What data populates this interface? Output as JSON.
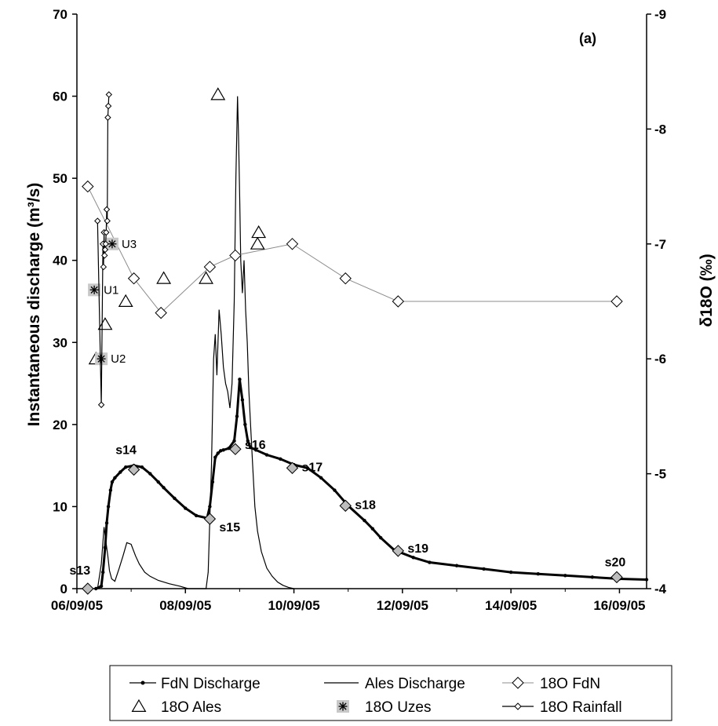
{
  "chart_data": {
    "type": "line",
    "panel_label": "(a)",
    "ylabel": "Instantaneous discharge (m³/s)",
    "y2label": "δ18O (‰)",
    "x_axis": {
      "ticks": [
        "06/09/05",
        "08/09/05",
        "10/09/05",
        "12/09/05",
        "14/09/05",
        "16/09/05"
      ],
      "range_days": [
        0,
        10.5
      ]
    },
    "y_axis": {
      "range": [
        0,
        70
      ],
      "ticks": [
        "0",
        "10",
        "20",
        "30",
        "40",
        "50",
        "60",
        "70"
      ]
    },
    "y2_axis": {
      "range": [
        -4,
        -9
      ],
      "ticks": [
        "-4",
        "-5",
        "-6",
        "-7",
        "-8",
        "-9"
      ]
    },
    "series": [
      {
        "name": "FdN Discharge",
        "axis": "left",
        "style": "line-dots",
        "x": [
          0.35,
          0.45,
          0.48,
          0.52,
          0.55,
          0.58,
          0.62,
          0.65,
          0.7,
          0.8,
          0.9,
          1.05,
          1.2,
          1.35,
          1.5,
          1.6,
          1.8,
          2.0,
          2.2,
          2.4,
          2.45,
          2.5,
          2.55,
          2.6,
          2.65,
          2.7,
          2.8,
          2.9,
          2.95,
          3.0,
          3.05,
          3.1,
          3.15,
          3.2,
          3.3,
          3.5,
          3.75,
          4.0,
          4.25,
          4.5,
          4.75,
          5.0,
          5.3,
          5.45,
          5.6,
          5.85,
          6.2,
          6.5,
          7.0,
          7.5,
          8.0,
          8.5,
          9.0,
          9.5,
          10.0,
          10.5
        ],
        "y": [
          0,
          0.3,
          2,
          5,
          8,
          10,
          12,
          13,
          13.5,
          14.2,
          14.8,
          15,
          14.8,
          14,
          13,
          12.3,
          11,
          9.8,
          8.9,
          8.6,
          10,
          13,
          16,
          16.5,
          16.8,
          16.9,
          17.1,
          18,
          21,
          25.5,
          23,
          20,
          18,
          17.2,
          16.9,
          16.3,
          15.8,
          15.1,
          14.7,
          13.5,
          12,
          10.1,
          8.3,
          7.3,
          6.2,
          4.7,
          3.8,
          3.2,
          2.8,
          2.4,
          2.0,
          1.8,
          1.6,
          1.4,
          1.2,
          1.1
        ]
      },
      {
        "name": "Ales Discharge",
        "axis": "left",
        "style": "line",
        "x": [
          0.38,
          0.45,
          0.5,
          0.53,
          0.57,
          0.6,
          0.64,
          0.7,
          0.78,
          0.85,
          0.92,
          1.0,
          1.08,
          1.15,
          1.25,
          1.35,
          1.5,
          1.7,
          1.9,
          2.0,
          2.05,
          2.38,
          2.42,
          2.48,
          2.52,
          2.55,
          2.58,
          2.62,
          2.66,
          2.7,
          2.74,
          2.78,
          2.82,
          2.86,
          2.9,
          2.93,
          2.96,
          2.98,
          3.0,
          3.02,
          3.05,
          3.08,
          3.11,
          3.14,
          3.17,
          3.2,
          3.24,
          3.28,
          3.33,
          3.4,
          3.5,
          3.6,
          3.7,
          3.8,
          3.9,
          4.0
        ],
        "y": [
          0,
          3,
          7.5,
          6,
          4,
          2.2,
          1.2,
          0.9,
          2.5,
          4,
          5.6,
          5.4,
          4,
          3,
          2,
          1.5,
          1,
          0.6,
          0.3,
          0.1,
          0,
          0,
          2,
          15,
          28,
          31,
          26,
          34,
          31,
          27,
          25,
          24,
          22,
          25,
          35,
          50,
          60,
          55,
          48,
          40,
          36,
          40,
          34,
          30,
          24,
          20,
          15,
          10,
          7,
          4.5,
          2.5,
          1.5,
          0.8,
          0.4,
          0.15,
          0
        ]
      },
      {
        "name": "18O FdN",
        "axis": "right",
        "style": "line-diamond",
        "x": [
          0.2,
          1.05,
          1.55,
          2.45,
          2.92,
          3.97,
          4.95,
          5.92,
          9.95
        ],
        "y": [
          -7.5,
          -6.7,
          -6.4,
          -6.8,
          -6.9,
          -7.0,
          -6.7,
          -6.5,
          -6.5
        ]
      },
      {
        "name": "18O Ales",
        "axis": "right",
        "style": "marker-triangle",
        "x": [
          0.35,
          0.52,
          0.9,
          1.6,
          2.38,
          2.6,
          3.33,
          3.35
        ],
        "y": [
          -6.0,
          -6.3,
          -6.5,
          -6.7,
          -6.7,
          -8.3,
          -7.0,
          -7.1
        ]
      },
      {
        "name": "18O Uzes",
        "axis": "right",
        "style": "marker-asterisk",
        "x": [
          0.32,
          0.45,
          0.65
        ],
        "y": [
          -6.6,
          -6.0,
          -7.0
        ]
      },
      {
        "name": "18O Rainfall",
        "axis": "right",
        "style": "line-smalldiamond",
        "x": [
          0.38,
          0.45,
          0.48,
          0.49,
          0.5,
          0.51,
          0.52,
          0.53,
          0.54,
          0.55,
          0.56,
          0.57,
          0.58,
          0.59
        ],
        "y": [
          -7.2,
          -5.6,
          -7.0,
          -6.8,
          -7.1,
          -6.9,
          -6.95,
          -7.0,
          -7.1,
          -7.3,
          -7.2,
          -8.1,
          -8.2,
          -8.3
        ]
      }
    ],
    "annotations": [
      {
        "text": "s13",
        "x": 0.2,
        "y": 0,
        "axis": "left"
      },
      {
        "text": "s14",
        "x": 1.05,
        "y": 14.5,
        "axis": "left"
      },
      {
        "text": "s15",
        "x": 2.45,
        "y": 8.5,
        "axis": "left"
      },
      {
        "text": "s16",
        "x": 2.92,
        "y": 17,
        "axis": "left"
      },
      {
        "text": "s17",
        "x": 3.97,
        "y": 14.7,
        "axis": "left"
      },
      {
        "text": "s18",
        "x": 4.95,
        "y": 10.1,
        "axis": "left"
      },
      {
        "text": "s19",
        "x": 5.92,
        "y": 4.6,
        "axis": "left"
      },
      {
        "text": "s20",
        "x": 9.95,
        "y": 1.4,
        "axis": "left"
      },
      {
        "text": "U1",
        "x": 0.32,
        "y": -6.6,
        "axis": "right"
      },
      {
        "text": "U2",
        "x": 0.45,
        "y": -6.0,
        "axis": "right"
      },
      {
        "text": "U3",
        "x": 0.65,
        "y": -7.0,
        "axis": "right"
      }
    ],
    "legend": {
      "placement": "bottom",
      "entries": [
        "FdN Discharge",
        "Ales Discharge",
        "18O FdN",
        "18O Ales",
        "18O Uzes",
        "18O Rainfall"
      ]
    }
  }
}
